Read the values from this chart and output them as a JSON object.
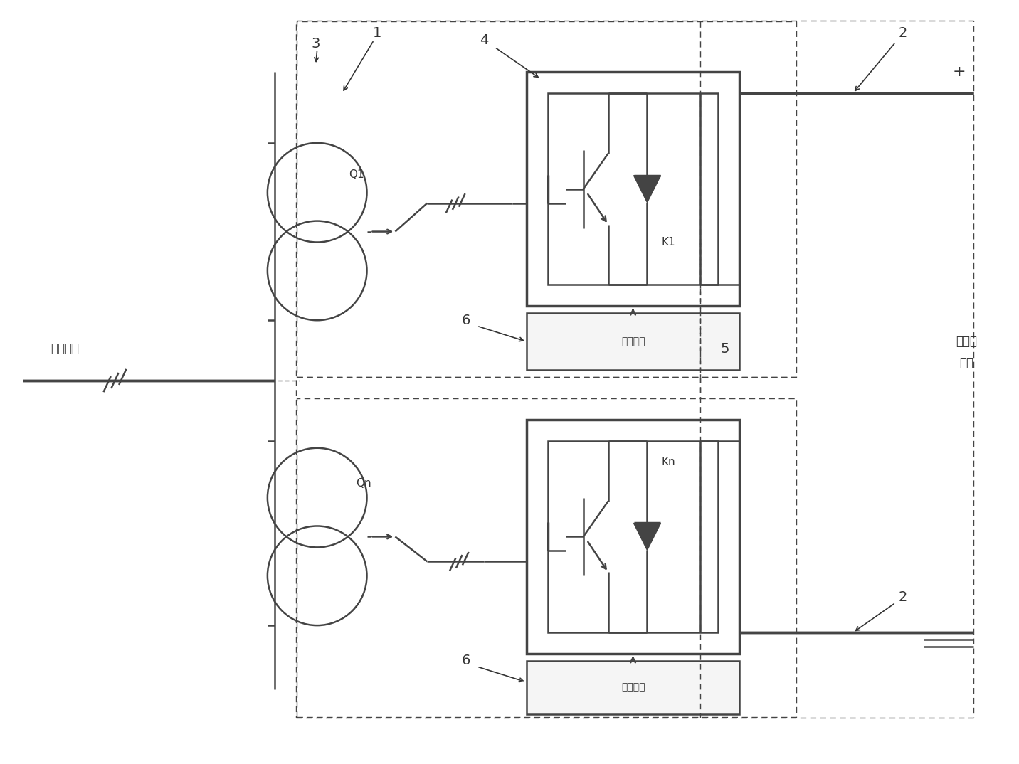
{
  "bg_color": "#ffffff",
  "lc": "#444444",
  "tc": "#333333",
  "fig_width": 14.32,
  "fig_height": 10.74,
  "dpi": 100,
  "texts": {
    "ac_grid": "交流电网",
    "dc_grid_line1": "直流接",
    "dc_grid_line2": "触网",
    "label_1": "1",
    "label_2a": "2",
    "label_2b": "2",
    "label_3": "3",
    "label_4": "4",
    "label_5": "5",
    "label_6a": "6",
    "label_6b": "6",
    "K1": "K1",
    "Kn": "Kn",
    "Q1": "Q1",
    "Qn": "Qn",
    "plus": "+",
    "minus": "—",
    "ctrl": "控制单元"
  }
}
